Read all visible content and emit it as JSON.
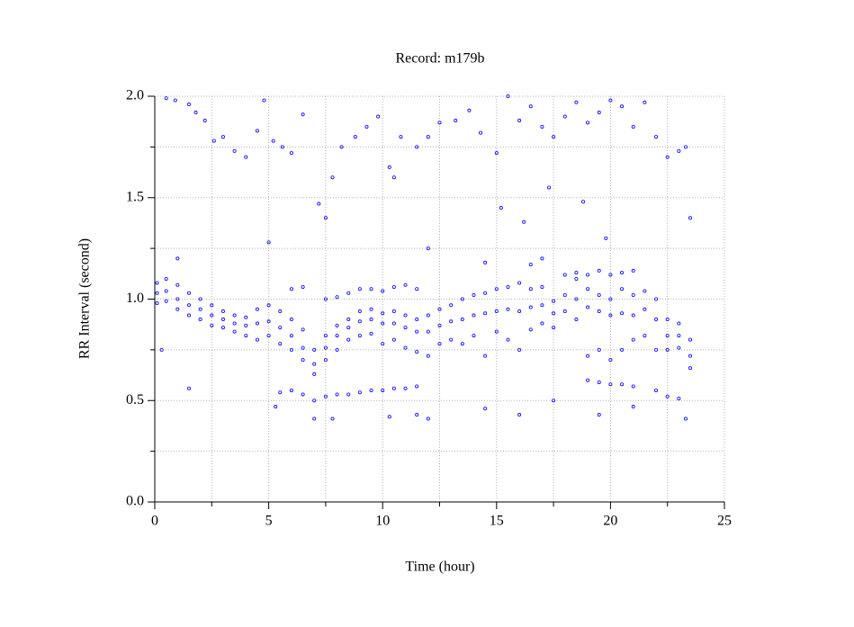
{
  "chart_data": {
    "type": "scatter",
    "title": "Record:  m179b",
    "x_label": "Time (hour)",
    "y_label": "RR Interval (second)",
    "color": "#0000ff",
    "grid": true,
    "xlim": [
      0,
      25
    ],
    "xticks": [
      0,
      5,
      10,
      15,
      20,
      25
    ],
    "xminor_ticks": [
      2.5,
      7.5,
      12.5,
      17.5,
      22.5
    ],
    "ylim": [
      0,
      2
    ],
    "yticks": [
      {
        "value": 0,
        "label": "0.0"
      },
      {
        "value": 0.5,
        "label": "0.5"
      },
      {
        "value": 1,
        "label": "1.0"
      },
      {
        "value": 1.5,
        "label": "1.5"
      },
      {
        "value": 2,
        "label": "2.0"
      }
    ],
    "yminor_ticks": [
      0.25,
      0.75,
      1.25,
      1.75
    ],
    "x": [
      0.1,
      0.1,
      0.1,
      0.5,
      0.5,
      0.5,
      1.0,
      1.0,
      1.0,
      1.5,
      1.5,
      1.5,
      2.0,
      2.0,
      2.0,
      2.5,
      2.5,
      2.5,
      3.0,
      3.0,
      3.0,
      3.5,
      3.5,
      3.5,
      4.0,
      4.0,
      4.0,
      4.5,
      4.5,
      4.5,
      5.0,
      5.0,
      5.0,
      5.5,
      5.5,
      5.5,
      6.0,
      6.0,
      6.0,
      6.5,
      6.5,
      6.5,
      7.0,
      7.0,
      7.0,
      7.5,
      7.5,
      7.5,
      8.0,
      8.0,
      8.0,
      8.5,
      8.5,
      8.5,
      9.0,
      9.0,
      9.0,
      9.5,
      9.5,
      9.5,
      10.0,
      10.0,
      10.0,
      10.5,
      10.5,
      10.5,
      11.0,
      11.0,
      11.0,
      11.5,
      11.5,
      11.5,
      12.0,
      12.0,
      12.0,
      12.5,
      12.5,
      12.5,
      13.0,
      13.0,
      13.0,
      13.5,
      13.5,
      13.5,
      14.0,
      14.0,
      14.0,
      14.5,
      14.5,
      14.5,
      15.0,
      15.0,
      15.0,
      15.5,
      15.5,
      15.5,
      16.0,
      16.0,
      16.0,
      16.5,
      16.5,
      16.5,
      17.0,
      17.0,
      17.0,
      17.5,
      17.5,
      17.5,
      18.0,
      18.0,
      18.0,
      18.5,
      18.5,
      18.5,
      19.0,
      19.0,
      19.0,
      19.5,
      19.5,
      19.5,
      20.0,
      20.0,
      20.0,
      20.5,
      20.5,
      20.5,
      21.0,
      21.0,
      21.0,
      21.5,
      21.5,
      21.5,
      22.0,
      22.0,
      22.0,
      22.5,
      22.5,
      22.5,
      23.0,
      23.0,
      23.0,
      23.5,
      23.5,
      23.5,
      5.5,
      6,
      6.5,
      7,
      7.5,
      8,
      8.5,
      9,
      9.5,
      10,
      10.5,
      11,
      11.5,
      6,
      6.5,
      7.5,
      8,
      8.5,
      9,
      9.5,
      10,
      10.5,
      11,
      11.5,
      18.5,
      19,
      19.5,
      20,
      20.5,
      21,
      19,
      19.5,
      20,
      20.5,
      21,
      22,
      22.5,
      23,
      0.5,
      0.9,
      1.5,
      1.8,
      2.2,
      2.6,
      3,
      3.5,
      4,
      4.5,
      4.8,
      5.2,
      5.6,
      6,
      6.5,
      7.2,
      7.8,
      8.2,
      8.8,
      9.3,
      9.8,
      10.3,
      10.8,
      11.5,
      12,
      12.5,
      13.2,
      13.8,
      14.3,
      15,
      15.5,
      16,
      16.5,
      17,
      17.5,
      18,
      18.5,
      19,
      19.5,
      20,
      20.5,
      21,
      21.5,
      22,
      22.5,
      23,
      23.3,
      15.2,
      16.2,
      17.3,
      18.8,
      19.8,
      7.5,
      10.5,
      23.5,
      0.3,
      1.5,
      5.3,
      7,
      7.8,
      10.3,
      11.5,
      12,
      14.5,
      16,
      17.5,
      19.5,
      21,
      23.3,
      1,
      5,
      12,
      14.5,
      16.5,
      17
    ],
    "values": [
      1.08,
      1.03,
      0.98,
      1.1,
      1.04,
      0.99,
      1.07,
      1.0,
      0.95,
      1.03,
      0.97,
      0.92,
      1.0,
      0.95,
      0.9,
      0.97,
      0.92,
      0.87,
      0.94,
      0.9,
      0.86,
      0.92,
      0.88,
      0.84,
      0.91,
      0.87,
      0.82,
      0.95,
      0.88,
      0.8,
      0.97,
      0.89,
      0.82,
      0.94,
      0.86,
      0.78,
      0.9,
      0.82,
      0.75,
      0.85,
      0.76,
      0.7,
      0.75,
      0.68,
      0.63,
      0.82,
      0.76,
      0.7,
      0.87,
      0.82,
      0.75,
      0.9,
      0.86,
      0.8,
      0.94,
      0.89,
      0.82,
      0.95,
      0.9,
      0.83,
      0.93,
      0.88,
      0.78,
      0.94,
      0.88,
      0.8,
      0.92,
      0.86,
      0.76,
      0.9,
      0.84,
      0.74,
      0.92,
      0.84,
      0.72,
      0.95,
      0.87,
      0.78,
      0.97,
      0.89,
      0.8,
      1.0,
      0.9,
      0.78,
      1.02,
      0.92,
      0.82,
      1.03,
      0.93,
      0.72,
      1.05,
      0.94,
      0.84,
      1.06,
      0.95,
      0.8,
      1.08,
      0.94,
      0.75,
      1.05,
      0.96,
      0.85,
      1.06,
      0.97,
      0.88,
      0.99,
      0.93,
      0.86,
      1.12,
      1.02,
      0.94,
      1.1,
      1.0,
      0.9,
      1.05,
      0.96,
      0.72,
      1.02,
      0.94,
      0.75,
      1.0,
      0.92,
      0.7,
      1.05,
      0.93,
      0.75,
      1.02,
      0.92,
      0.8,
      1.04,
      0.95,
      0.82,
      1.0,
      0.9,
      0.75,
      0.9,
      0.82,
      0.75,
      0.88,
      0.82,
      0.76,
      0.8,
      0.72,
      0.66,
      0.54,
      0.55,
      0.53,
      0.5,
      0.52,
      0.53,
      0.53,
      0.54,
      0.55,
      0.55,
      0.56,
      0.56,
      0.57,
      1.05,
      1.06,
      1.0,
      1.01,
      1.03,
      1.05,
      1.05,
      1.04,
      1.06,
      1.07,
      1.05,
      1.13,
      1.12,
      1.14,
      1.12,
      1.13,
      1.14,
      0.6,
      0.59,
      0.58,
      0.58,
      0.57,
      0.55,
      0.52,
      0.51,
      1.99,
      1.98,
      1.96,
      1.92,
      1.88,
      1.78,
      1.8,
      1.73,
      1.7,
      1.83,
      1.98,
      1.78,
      1.75,
      1.72,
      1.91,
      1.47,
      1.6,
      1.75,
      1.8,
      1.85,
      1.9,
      1.65,
      1.8,
      1.75,
      1.8,
      1.87,
      1.88,
      1.93,
      1.82,
      1.72,
      2.0,
      1.88,
      1.95,
      1.85,
      1.8,
      1.9,
      1.97,
      1.87,
      1.92,
      1.98,
      1.95,
      1.85,
      1.97,
      1.8,
      1.7,
      1.73,
      1.75,
      1.45,
      1.38,
      1.55,
      1.48,
      1.3,
      1.4,
      1.6,
      1.4,
      0.75,
      0.56,
      0.47,
      0.41,
      0.41,
      0.42,
      0.43,
      0.41,
      0.46,
      0.43,
      0.5,
      0.43,
      0.47,
      0.41,
      1.2,
      1.28,
      1.25,
      1.18,
      1.17,
      1.2
    ]
  }
}
